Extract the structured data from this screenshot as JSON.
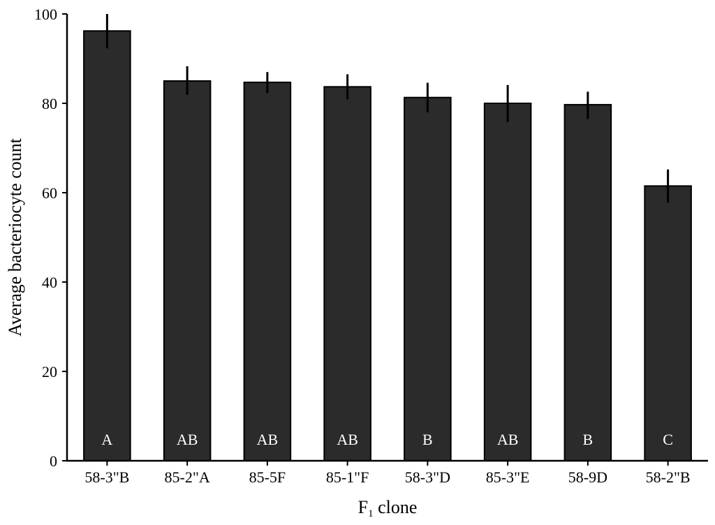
{
  "chart_data": {
    "type": "bar",
    "categories": [
      "58-3\"B",
      "85-2\"A",
      "85-5F",
      "85-1\"F",
      "58-3\"D",
      "85-3\"E",
      "58-9D",
      "58-2\"B"
    ],
    "values": [
      96.2,
      85.0,
      84.7,
      83.7,
      81.3,
      80.0,
      79.7,
      61.5
    ],
    "error_low": [
      92.3,
      81.9,
      82.3,
      80.9,
      78.0,
      75.8,
      76.5,
      57.8
    ],
    "error_high": [
      100.0,
      88.3,
      87.0,
      86.5,
      84.6,
      84.1,
      82.6,
      65.2
    ],
    "group_letters": [
      "A",
      "AB",
      "AB",
      "AB",
      "B",
      "AB",
      "B",
      "C"
    ],
    "ylabel": "Average bacteriocyte count",
    "xlabel_main": "F",
    "xlabel_sub": "1",
    "xlabel_rest": " clone",
    "ylim": [
      0,
      100
    ],
    "yticks": [
      0,
      20,
      40,
      60,
      80,
      100
    ],
    "grid": false,
    "legend": "none",
    "bar_color": "#2b2b2b"
  }
}
